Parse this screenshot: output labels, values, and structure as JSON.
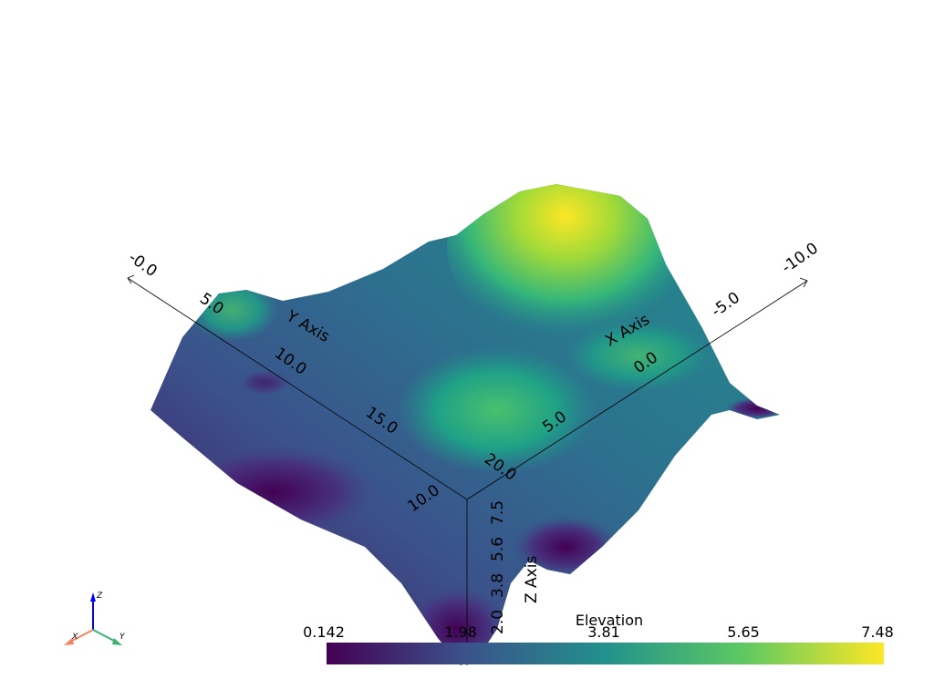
{
  "chart_data": {
    "type": "surface3d",
    "scalar_bar": {
      "title": "Elevation",
      "range": [
        0.142,
        7.48
      ],
      "tick_labels": [
        "0.142",
        "1.98",
        "3.81",
        "5.65",
        "7.48"
      ],
      "colormap": "viridis",
      "colors": [
        "#440154",
        "#3b528b",
        "#21918c",
        "#5ec962",
        "#fde725"
      ]
    },
    "axes": {
      "x": {
        "title": "X Axis",
        "tick_labels": [
          "-10.0",
          "-5.0",
          "0.0",
          "5.0",
          "10.0"
        ]
      },
      "y": {
        "title": "Y Axis",
        "tick_labels": [
          "-0.0",
          "5.0",
          "10.0",
          "15.0",
          "20.0"
        ]
      },
      "z": {
        "title": "Z Axis",
        "tick_labels": [
          "7.5",
          "5.6",
          "3.8",
          "2.0"
        ]
      }
    },
    "orientation_widget": {
      "labels": [
        "X",
        "Y",
        "Z"
      ],
      "colors": {
        "x": "#f4845f",
        "y": "#3cb371",
        "z": "#0000ff"
      }
    },
    "grid": false
  }
}
